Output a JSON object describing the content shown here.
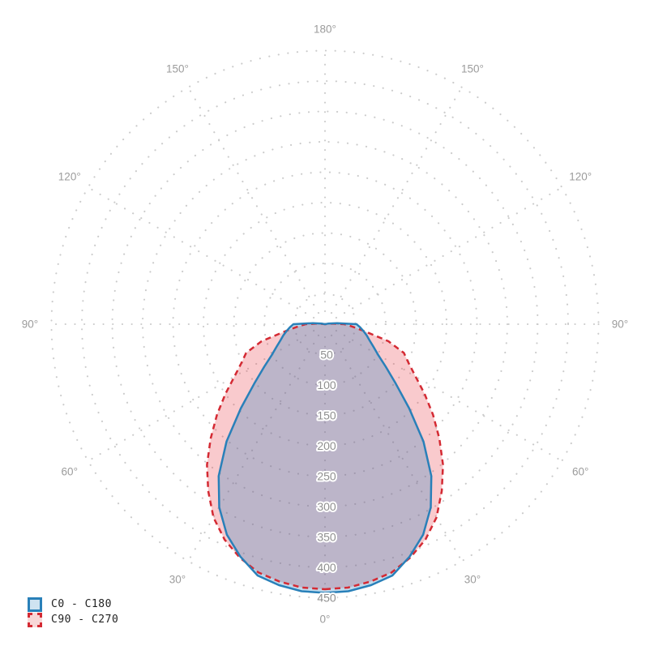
{
  "chart_data": {
    "type": "polar",
    "description": "Photometric luminous intensity distribution polar curve, 0 deg at bottom, 180 deg at top, mirrored left/right",
    "angle_unit": "°",
    "angle_ticks_deg": [
      0,
      30,
      60,
      90,
      120,
      150,
      180
    ],
    "radial_ticks": [
      50,
      100,
      150,
      200,
      250,
      300,
      350,
      400,
      450
    ],
    "rmax": 450,
    "grid": {
      "style": "dotted",
      "color": "#cbcbcb",
      "rings": 9,
      "spoke_step_deg": 30
    },
    "labels": {
      "angle_color": "#9c9c9c",
      "tick_color": "#8f8f8f"
    },
    "legend_position": "bottom-left",
    "series": [
      {
        "name": "C0 - C180",
        "line": "solid",
        "color": "#2980b9",
        "fill": "#2e86c1",
        "fill_opacity": 0.3,
        "points": [
          [
            0,
            442
          ],
          [
            5,
            441
          ],
          [
            10,
            436
          ],
          [
            15,
            428
          ],
          [
            20,
            407
          ],
          [
            25,
            382
          ],
          [
            30,
            348
          ],
          [
            35,
            305
          ],
          [
            40,
            252
          ],
          [
            45,
            196
          ],
          [
            50,
            152
          ],
          [
            55,
            122
          ],
          [
            60,
            101
          ],
          [
            65,
            88
          ],
          [
            70,
            78
          ],
          [
            75,
            71
          ],
          [
            80,
            64
          ],
          [
            85,
            58
          ],
          [
            90,
            52
          ],
          [
            95,
            20
          ],
          [
            100,
            5
          ],
          [
            105,
            0
          ],
          [
            180,
            0
          ]
        ]
      },
      {
        "name": "C90 - C270",
        "line": "dashed",
        "color": "#d42a33",
        "fill": "#e8404d",
        "fill_opacity": 0.28,
        "points": [
          [
            0,
            436
          ],
          [
            5,
            435
          ],
          [
            10,
            430
          ],
          [
            15,
            423
          ],
          [
            20,
            409
          ],
          [
            25,
            391
          ],
          [
            30,
            367
          ],
          [
            35,
            335
          ],
          [
            40,
            302
          ],
          [
            45,
            266
          ],
          [
            50,
            232
          ],
          [
            55,
            200
          ],
          [
            60,
            172
          ],
          [
            65,
            152
          ],
          [
            70,
            138
          ],
          [
            75,
            108
          ],
          [
            80,
            66
          ],
          [
            85,
            45
          ],
          [
            90,
            32
          ],
          [
            95,
            12
          ],
          [
            100,
            0
          ],
          [
            180,
            0
          ]
        ]
      }
    ]
  }
}
